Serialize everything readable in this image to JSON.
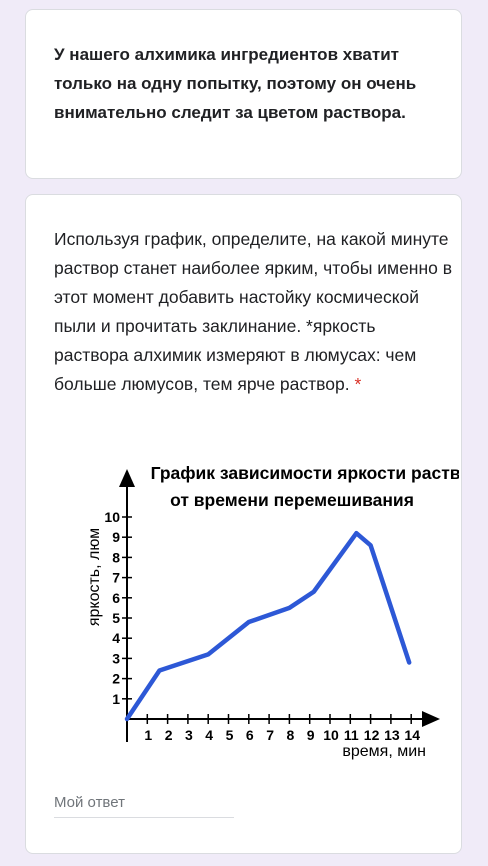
{
  "card1": {
    "text": "У нашего алхимика ингредиентов хватит только на одну попытку, поэтому он очень внимательно следит за цветом раствора."
  },
  "question": {
    "text": "Используя график, определите, на какой минуте раствор станет наиболее ярким, чтобы именно в этот момент добавить настойку космической пыли и прочитать заклинание. *яркость раствора алхимик измеряют в люмусах: чем больше люмусов, тем ярче раствор.",
    "required_mark": "*"
  },
  "answer": {
    "placeholder": "Мой ответ"
  },
  "colors": {
    "line": "#2d58d6",
    "required": "#d93025"
  },
  "chart_data": {
    "type": "line",
    "title_lines": [
      "График зависимости яркости раствора",
      "от времени перемешивания"
    ],
    "xlabel": "время, мин",
    "ylabel": "яркость, люм",
    "x_ticks": [
      1,
      2,
      3,
      4,
      5,
      6,
      7,
      8,
      9,
      10,
      11,
      12,
      13,
      14
    ],
    "y_ticks": [
      1,
      2,
      3,
      4,
      5,
      6,
      7,
      8,
      9,
      10
    ],
    "xlim": [
      0,
      14
    ],
    "ylim": [
      0,
      10
    ],
    "grid": false,
    "series": [
      {
        "x": [
          0,
          1.6,
          4,
          6,
          8,
          9.2,
          11.3,
          12,
          13.9
        ],
        "y": [
          0,
          2.4,
          3.2,
          4.8,
          5.5,
          6.3,
          9.2,
          8.6,
          2.8
        ]
      }
    ]
  }
}
